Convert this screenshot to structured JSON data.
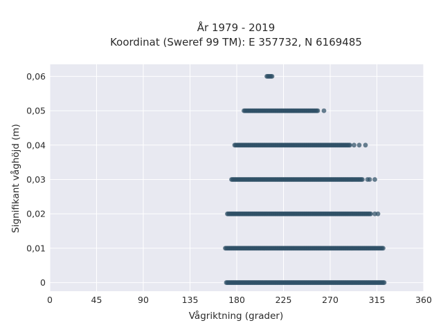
{
  "chart_data": {
    "type": "scatter",
    "title": "År 1979 - 2019",
    "subtitle": "Koordinat (Sweref 99 TM): E 357732, N 6169485",
    "xlabel": "Vågriktning (grader)",
    "ylabel": "Signifikant våghöjd (m)",
    "xlim": [
      0,
      360
    ],
    "ylim": [
      -0.0025,
      0.0635
    ],
    "xticks": [
      0,
      45,
      90,
      135,
      180,
      225,
      270,
      315,
      360
    ],
    "xtick_labels": [
      "0",
      "45",
      "90",
      "135",
      "180",
      "225",
      "270",
      "315",
      "360"
    ],
    "yticks": [
      0,
      0.01,
      0.02,
      0.03,
      0.04,
      0.05,
      0.06
    ],
    "ytick_labels": [
      "0",
      "0,01",
      "0,02",
      "0,03",
      "0,04",
      "0,05",
      "0,06"
    ],
    "grid": true,
    "background": "#e8e9f1",
    "marker_color": "#2f5067",
    "series": [
      {
        "bands": [
          {
            "y": 0,
            "x_start": 170,
            "x_end": 322,
            "isolated_x": []
          },
          {
            "y": 0.01,
            "x_start": 169,
            "x_end": 321,
            "isolated_x": []
          },
          {
            "y": 0.02,
            "x_start": 171,
            "x_end": 309,
            "isolated_x": [
              313,
              316
            ]
          },
          {
            "y": 0.03,
            "x_start": 175,
            "x_end": 301,
            "isolated_x": [
              306,
              308,
              313
            ]
          },
          {
            "y": 0.04,
            "x_start": 178,
            "x_end": 289,
            "isolated_x": [
              293,
              298,
              304
            ]
          },
          {
            "y": 0.05,
            "x_start": 187,
            "x_end": 258,
            "isolated_x": [
              264
            ]
          },
          {
            "y": 0.06,
            "x_start": 209,
            "x_end": 214,
            "isolated_x": []
          }
        ]
      }
    ]
  }
}
